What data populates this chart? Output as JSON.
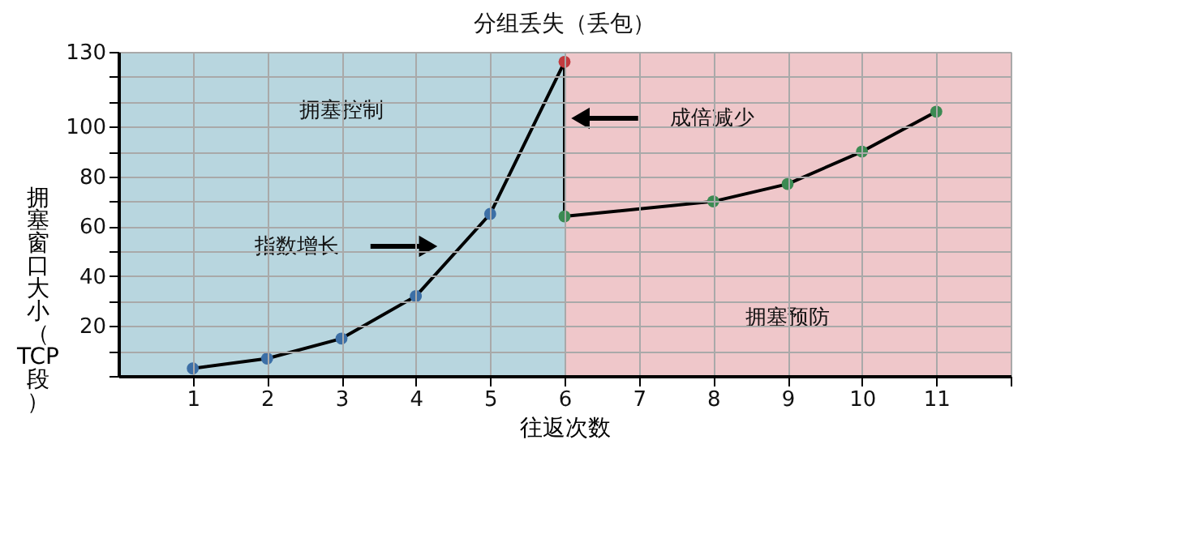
{
  "chart_data": {
    "type": "line",
    "title": "分组丢失（丢包）",
    "xlabel": "往返次数",
    "ylabel": "拥塞窗口大小（TCP段）",
    "xlim": [
      0,
      12
    ],
    "xticks": [
      1,
      2,
      3,
      4,
      5,
      6,
      7,
      8,
      9,
      10,
      11,
      {
        "value": 12,
        "label": null
      }
    ],
    "ylim": [
      0,
      130
    ],
    "yticks": [
      {
        "value": 0,
        "label": null
      },
      {
        "value": 10,
        "label": null
      },
      20,
      {
        "value": 30,
        "label": null
      },
      40,
      {
        "value": 50,
        "label": null
      },
      60,
      {
        "value": 70,
        "label": null
      },
      80,
      {
        "value": 90,
        "label": null
      },
      100,
      {
        "value": 110,
        "label": null
      },
      {
        "value": 120,
        "label": null
      },
      130
    ],
    "series": [
      {
        "x": [
          1,
          2,
          3,
          4,
          5,
          6,
          6,
          8,
          9,
          10,
          11
        ],
        "values": [
          3,
          7,
          15,
          32,
          65,
          126,
          64,
          70,
          77,
          90,
          106
        ],
        "color": "#000000",
        "colors": [
          "#3c6fa6",
          "#3c6fa6",
          "#3c6fa6",
          "#3c6fa6",
          "#3c6fa6",
          "#c23b3f",
          "#3b8a52",
          "#3b8a52",
          "#3b8a52",
          "#3b8a52",
          "#3b8a52"
        ]
      }
    ],
    "bands": [
      {
        "axis": "x",
        "from": 0,
        "to": 6,
        "label": "拥塞控制",
        "color": "#b8d6df"
      },
      {
        "axis": "x",
        "from": 6,
        "to": 12,
        "label": "拥塞预防",
        "color": "#efc7ca"
      }
    ],
    "annotations": [
      "指数增长",
      "成倍减少"
    ],
    "grid": true,
    "marker": "circle",
    "line_style": "solid"
  }
}
